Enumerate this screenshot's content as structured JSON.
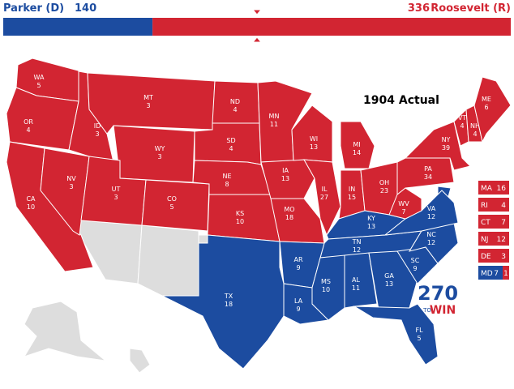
{
  "header": {
    "left": {
      "name": "Parker (D)",
      "votes": 140,
      "color": "#1c4ca0"
    },
    "right": {
      "name": "Roosevelt (R)",
      "votes": 336,
      "color": "#d22532"
    }
  },
  "title": "1904 Actual",
  "states": [
    {
      "abbr": "WA",
      "ev": 5,
      "winner": "right"
    },
    {
      "abbr": "OR",
      "ev": 4,
      "winner": "right"
    },
    {
      "abbr": "CA",
      "ev": 10,
      "winner": "right"
    },
    {
      "abbr": "NV",
      "ev": 3,
      "winner": "right"
    },
    {
      "abbr": "ID",
      "ev": 3,
      "winner": "right"
    },
    {
      "abbr": "MT",
      "ev": 3,
      "winner": "right"
    },
    {
      "abbr": "WY",
      "ev": 3,
      "winner": "right"
    },
    {
      "abbr": "UT",
      "ev": 3,
      "winner": "right"
    },
    {
      "abbr": "CO",
      "ev": 5,
      "winner": "right"
    },
    {
      "abbr": "ND",
      "ev": 4,
      "winner": "right"
    },
    {
      "abbr": "SD",
      "ev": 4,
      "winner": "right"
    },
    {
      "abbr": "NE",
      "ev": 8,
      "winner": "right"
    },
    {
      "abbr": "KS",
      "ev": 10,
      "winner": "right"
    },
    {
      "abbr": "MN",
      "ev": 11,
      "winner": "right"
    },
    {
      "abbr": "IA",
      "ev": 13,
      "winner": "right"
    },
    {
      "abbr": "MO",
      "ev": 18,
      "winner": "right"
    },
    {
      "abbr": "WI",
      "ev": 13,
      "winner": "right"
    },
    {
      "abbr": "IL",
      "ev": 27,
      "winner": "right"
    },
    {
      "abbr": "MI",
      "ev": 14,
      "winner": "right"
    },
    {
      "abbr": "IN",
      "ev": 15,
      "winner": "right"
    },
    {
      "abbr": "OH",
      "ev": 23,
      "winner": "right"
    },
    {
      "abbr": "KY",
      "ev": 13,
      "winner": "left"
    },
    {
      "abbr": "TN",
      "ev": 12,
      "winner": "left"
    },
    {
      "abbr": "AR",
      "ev": 9,
      "winner": "left"
    },
    {
      "abbr": "LA",
      "ev": 9,
      "winner": "left"
    },
    {
      "abbr": "MS",
      "ev": 10,
      "winner": "left"
    },
    {
      "abbr": "AL",
      "ev": 11,
      "winner": "left"
    },
    {
      "abbr": "GA",
      "ev": 13,
      "winner": "left"
    },
    {
      "abbr": "FL",
      "ev": 5,
      "winner": "left"
    },
    {
      "abbr": "SC",
      "ev": 9,
      "winner": "left"
    },
    {
      "abbr": "NC",
      "ev": 12,
      "winner": "left"
    },
    {
      "abbr": "VA",
      "ev": 12,
      "winner": "left"
    },
    {
      "abbr": "WV",
      "ev": 7,
      "winner": "right"
    },
    {
      "abbr": "PA",
      "ev": 34,
      "winner": "right"
    },
    {
      "abbr": "NY",
      "ev": 39,
      "winner": "right"
    },
    {
      "abbr": "VT",
      "ev": 4,
      "winner": "right"
    },
    {
      "abbr": "NH",
      "ev": 4,
      "winner": "right"
    },
    {
      "abbr": "ME",
      "ev": 6,
      "winner": "right"
    },
    {
      "abbr": "TX",
      "ev": 18,
      "winner": "left"
    }
  ],
  "small_states": [
    {
      "abbr": "MA",
      "ev": 16,
      "winner": "right"
    },
    {
      "abbr": "RI",
      "ev": 4,
      "winner": "right"
    },
    {
      "abbr": "CT",
      "ev": 7,
      "winner": "right"
    },
    {
      "abbr": "NJ",
      "ev": 12,
      "winner": "right"
    },
    {
      "abbr": "DE",
      "ev": 3,
      "winner": "right"
    },
    {
      "abbr": "MD",
      "split": [
        {
          "ev": 7,
          "winner": "left"
        },
        {
          "ev": 1,
          "winner": "right"
        }
      ]
    }
  ],
  "logo": {
    "number": "270",
    "to": "TO",
    "win": "WIN"
  }
}
